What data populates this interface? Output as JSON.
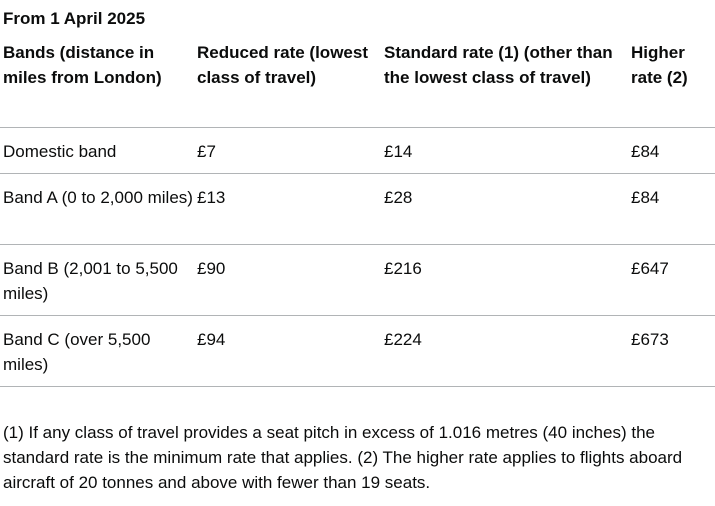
{
  "table": {
    "caption": "From 1 April 2025",
    "headers": [
      "Bands (distance in miles from London)",
      "Reduced rate (lowest class of travel)",
      "Standard rate (1) (other than the lowest class of travel)",
      "Higher rate (2)"
    ],
    "rows": [
      [
        "Domestic band",
        "£7",
        "£14",
        "£84"
      ],
      [
        "Band A (0 to 2,000 miles)",
        "£13",
        "£28",
        "£84"
      ],
      [
        "Band B (2,001 to 5,500 miles)",
        "£90",
        "£216",
        "£647"
      ],
      [
        "Band C (over 5,500 miles)",
        "£94",
        "£224",
        "£673"
      ]
    ]
  },
  "footnote": "(1) If any class of travel provides a seat pitch in excess of 1.016 metres (40 inches) the standard rate is the minimum rate that applies. (2) The higher rate applies to flights aboard aircraft of 20 tonnes and above with fewer than 19 seats."
}
